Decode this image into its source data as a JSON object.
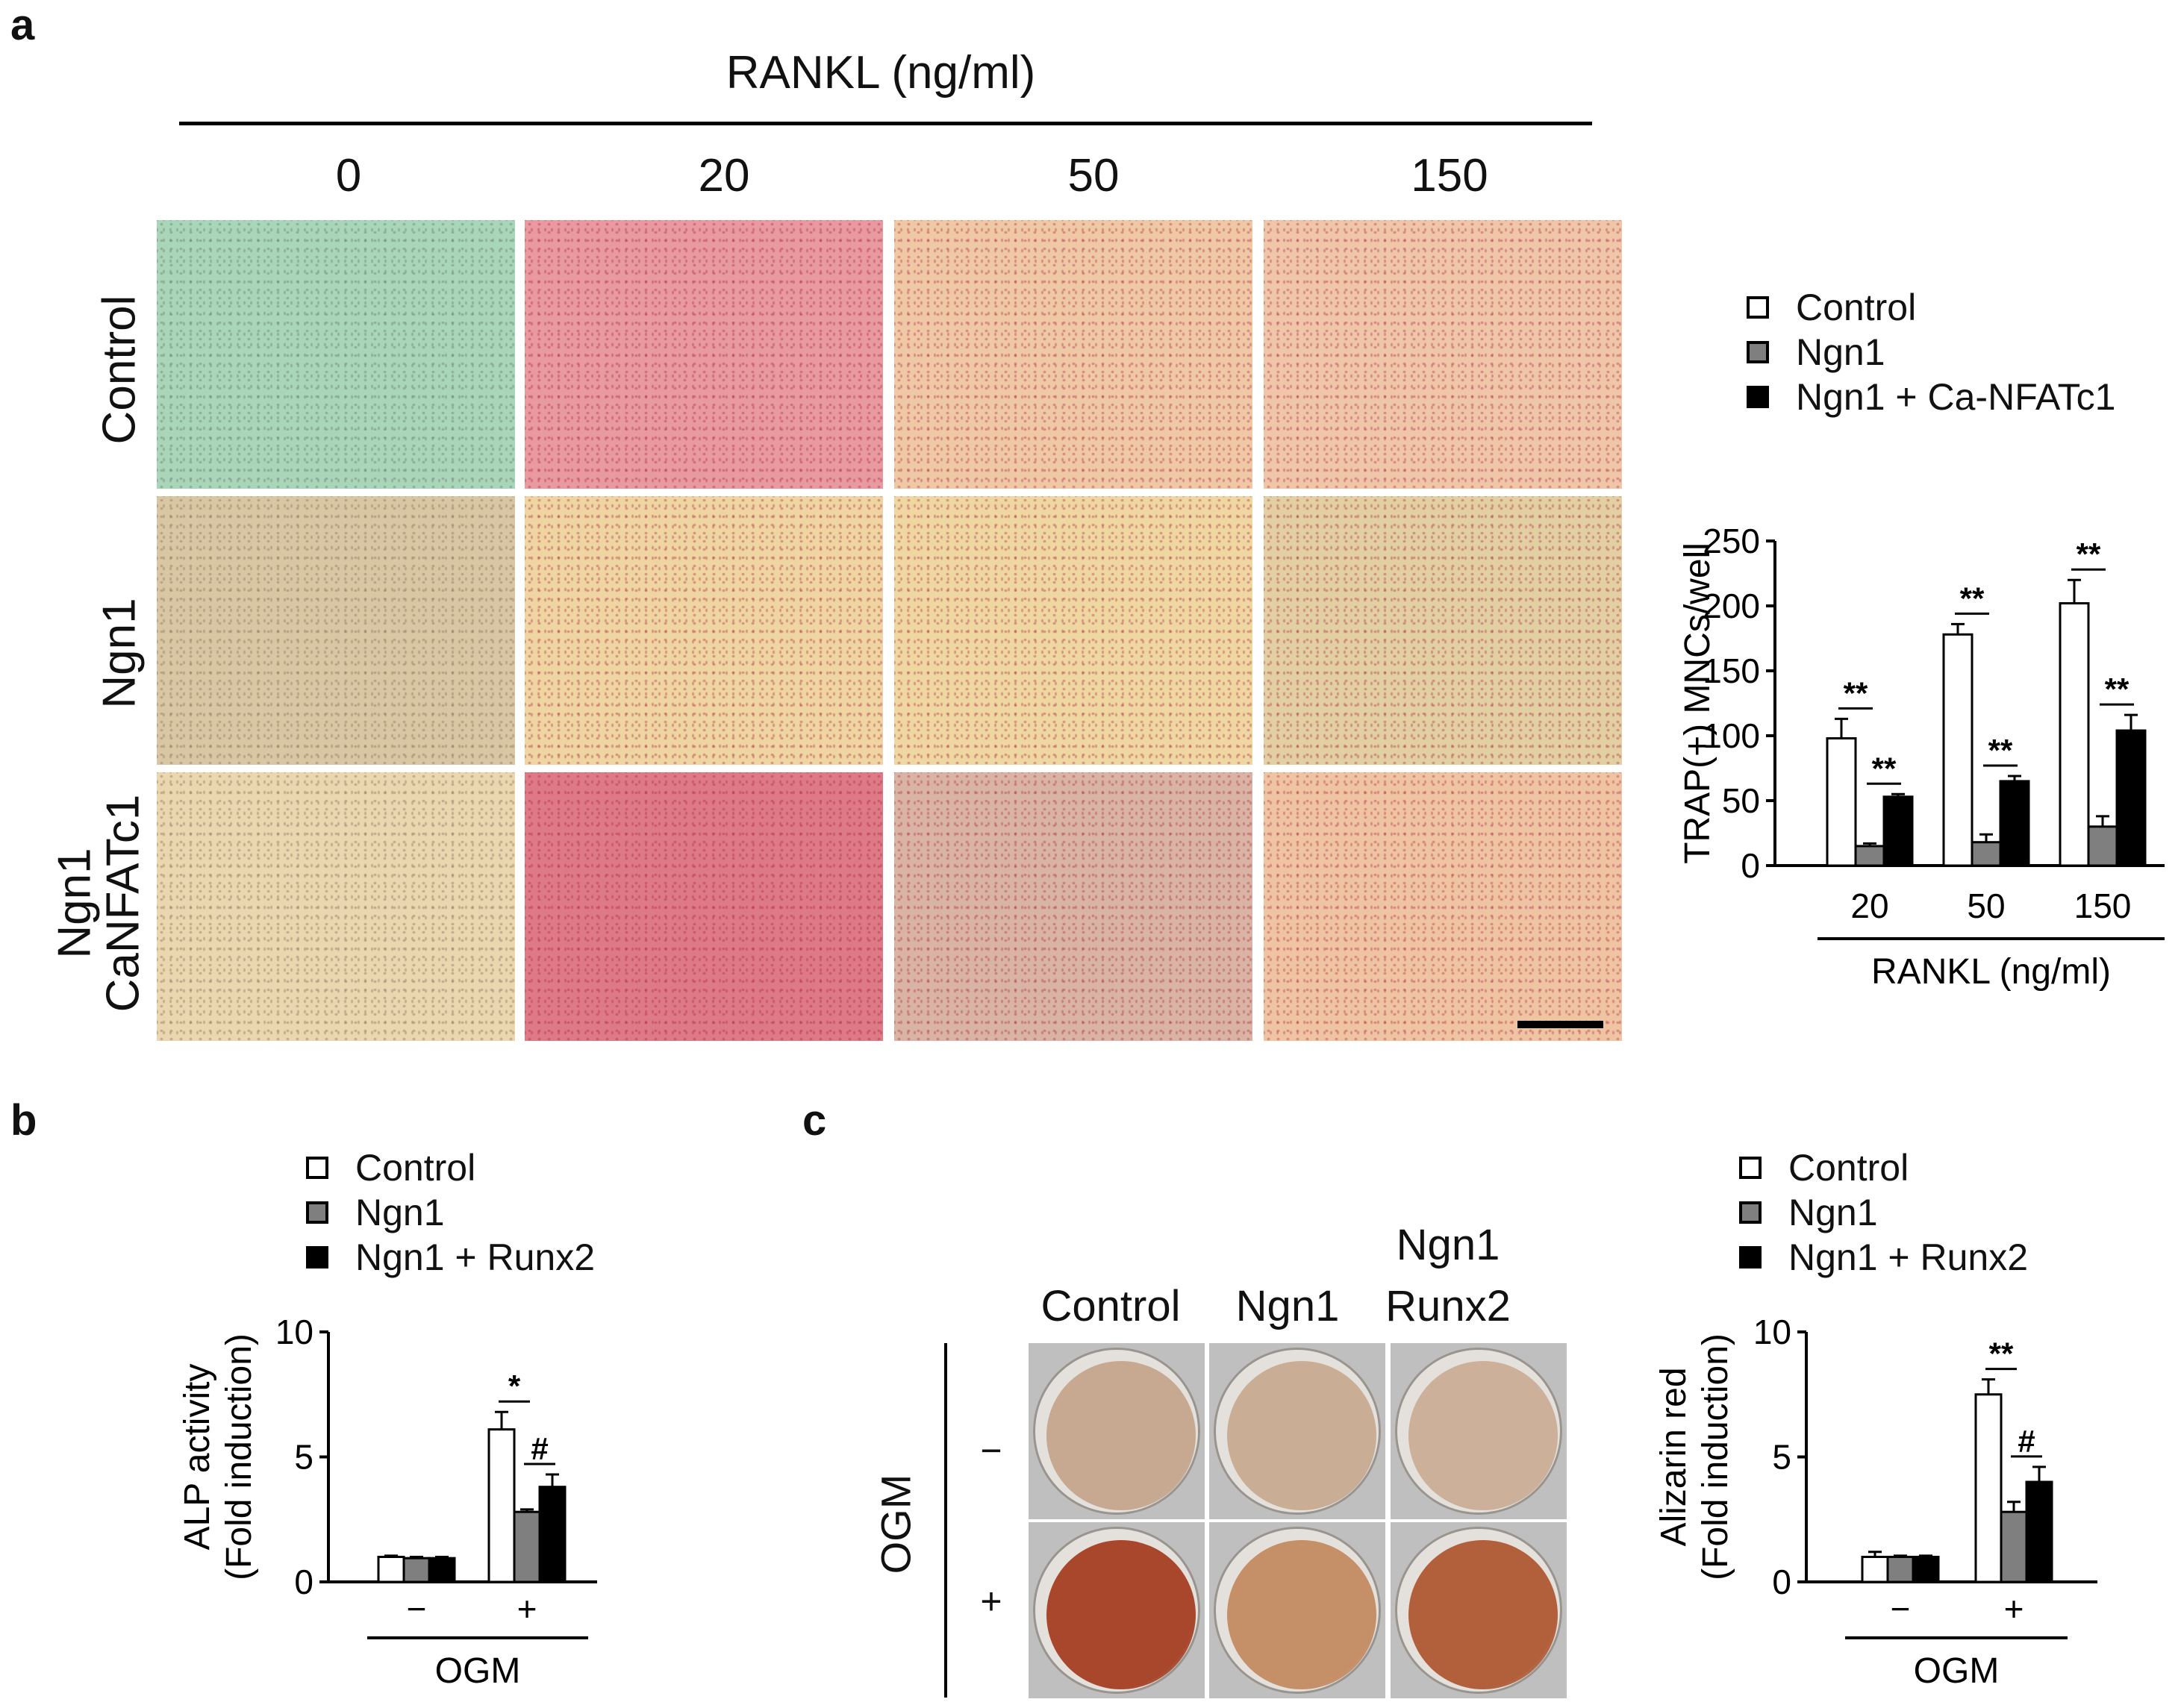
{
  "panel_a": {
    "letter": "a",
    "top_axis_label": "RANKL (ng/ml)",
    "columns": [
      "0",
      "20",
      "50",
      "150"
    ],
    "rows": [
      {
        "label": "Control"
      },
      {
        "label": "Ngn1"
      },
      {
        "label_line1": "Ngn1",
        "label_line2": "CaNFATc1"
      }
    ],
    "well_colors": [
      [
        "#a9d6b9",
        "#e89aa0",
        "#efc8a6",
        "#efc6a8"
      ],
      [
        "#d9c7a4",
        "#eed5a1",
        "#efd7a2",
        "#e2cfa2"
      ],
      [
        "#ead6af",
        "#de7a86",
        "#d9b4a4",
        "#efc4a3"
      ]
    ]
  },
  "panel_b": {
    "letter": "b"
  },
  "panel_c": {
    "letter": "c",
    "side_label": "OGM",
    "columns": [
      {
        "line1": "",
        "line2": "Control"
      },
      {
        "line1": "",
        "line2": "Ngn1"
      },
      {
        "line1": "Ngn1",
        "line2": "Runx2"
      }
    ],
    "rows": [
      "−",
      "+"
    ],
    "well_colors": [
      [
        "#c7a991",
        "#c9ad95",
        "#cdb099"
      ],
      [
        "#a8472c",
        "#c58f68",
        "#b2603c"
      ]
    ]
  },
  "legend_a": {
    "items": [
      "Control",
      "Ngn1",
      "Ngn1 + Ca-NFATc1"
    ],
    "colors": [
      "#ffffff",
      "#7f7f7f",
      "#000000"
    ]
  },
  "legend_b": {
    "items": [
      "Control",
      "Ngn1",
      "Ngn1 + Runx2"
    ],
    "colors": [
      "#ffffff",
      "#7f7f7f",
      "#000000"
    ]
  },
  "legend_c": {
    "items": [
      "Control",
      "Ngn1",
      "Ngn1 + Runx2"
    ],
    "colors": [
      "#ffffff",
      "#7f7f7f",
      "#000000"
    ]
  },
  "chart_data": [
    {
      "type": "bar",
      "panel": "a",
      "title": "",
      "ylabel": "TRAP(+) MNCs/well",
      "xlabel": "RANKL (ng/ml)",
      "categories": [
        "20",
        "50",
        "150"
      ],
      "ylim": [
        0,
        250
      ],
      "yticks": [
        "0",
        "50",
        "100",
        "150",
        "200",
        "250"
      ],
      "series": [
        {
          "name": "Control",
          "values": [
            98,
            178,
            202
          ],
          "errors": [
            15,
            8,
            18
          ],
          "color": "#ffffff"
        },
        {
          "name": "Ngn1",
          "values": [
            15,
            18,
            30
          ],
          "errors": [
            2,
            6,
            8
          ],
          "color": "#7f7f7f"
        },
        {
          "name": "Ngn1 + Ca-NFATc1",
          "values": [
            53,
            65,
            104
          ],
          "errors": [
            2,
            4,
            12
          ],
          "color": "#000000"
        }
      ],
      "annotations": [
        {
          "category": "20",
          "pair": "Control-Ngn1",
          "text": "**"
        },
        {
          "category": "20",
          "pair": "Ngn1-Ngn1 + Ca-NFATc1",
          "text": "**"
        },
        {
          "category": "50",
          "pair": "Control-Ngn1",
          "text": "**"
        },
        {
          "category": "50",
          "pair": "Ngn1-Ngn1 + Ca-NFATc1",
          "text": "**"
        },
        {
          "category": "150",
          "pair": "Control-Ngn1",
          "text": "**"
        },
        {
          "category": "150",
          "pair": "Ngn1-Ngn1 + Ca-NFATc1",
          "text": "**"
        }
      ],
      "legend": "top"
    },
    {
      "type": "bar",
      "panel": "b",
      "title": "",
      "ylabel_line1": "ALP activity",
      "ylabel_line2": "(Fold induction)",
      "xlabel": "OGM",
      "categories": [
        "−",
        "+"
      ],
      "ylim": [
        0,
        10
      ],
      "yticks": [
        "0",
        "5",
        "10"
      ],
      "series": [
        {
          "name": "Control",
          "values": [
            1.0,
            6.1
          ],
          "errors": [
            0.05,
            0.7
          ],
          "color": "#ffffff"
        },
        {
          "name": "Ngn1",
          "values": [
            0.95,
            2.8
          ],
          "errors": [
            0.05,
            0.1
          ],
          "color": "#7f7f7f"
        },
        {
          "name": "Ngn1 + Runx2",
          "values": [
            0.95,
            3.8
          ],
          "errors": [
            0.05,
            0.5
          ],
          "color": "#000000"
        }
      ],
      "annotations": [
        {
          "category": "+",
          "pair": "Control-Ngn1",
          "text": "*"
        },
        {
          "category": "+",
          "pair": "Ngn1-Ngn1 + Runx2",
          "text": "#"
        }
      ],
      "legend": "top"
    },
    {
      "type": "bar",
      "panel": "c",
      "title": "",
      "ylabel_line1": "Alizarin red",
      "ylabel_line2": "(Fold induction)",
      "xlabel": "OGM",
      "categories": [
        "−",
        "+"
      ],
      "ylim": [
        0,
        10
      ],
      "yticks": [
        "0",
        "5",
        "10"
      ],
      "series": [
        {
          "name": "Control",
          "values": [
            1.0,
            7.5
          ],
          "errors": [
            0.2,
            0.6
          ],
          "color": "#ffffff"
        },
        {
          "name": "Ngn1",
          "values": [
            1.0,
            2.8
          ],
          "errors": [
            0.05,
            0.4
          ],
          "color": "#7f7f7f"
        },
        {
          "name": "Ngn1 + Runx2",
          "values": [
            1.0,
            4.0
          ],
          "errors": [
            0.05,
            0.6
          ],
          "color": "#000000"
        }
      ],
      "annotations": [
        {
          "category": "+",
          "pair": "Control-Ngn1",
          "text": "**"
        },
        {
          "category": "+",
          "pair": "Ngn1-Ngn1 + Runx2",
          "text": "#"
        }
      ],
      "legend": "top"
    }
  ]
}
